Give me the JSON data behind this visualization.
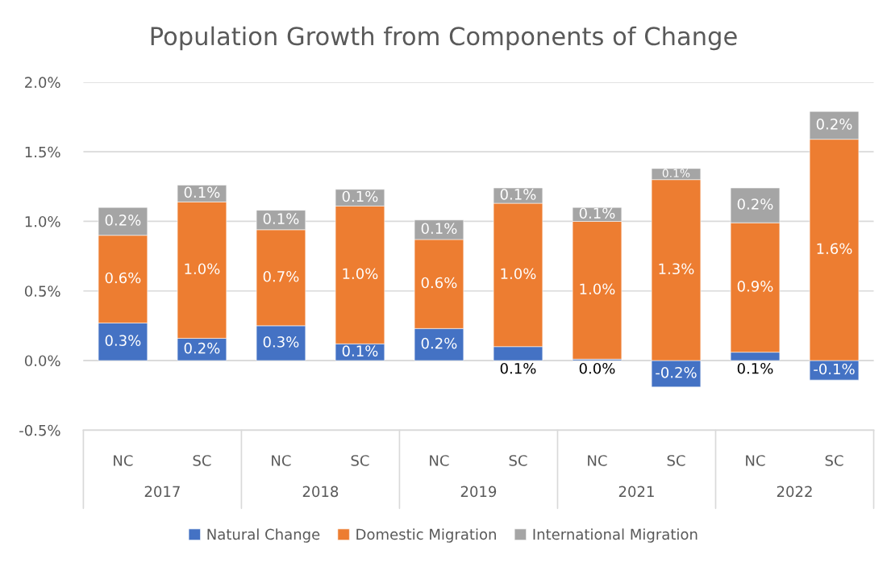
{
  "chart_data": {
    "type": "bar",
    "title": "Population Growth from Components of Change",
    "categories": [
      "NC",
      "SC",
      "NC",
      "SC",
      "NC",
      "SC",
      "NC",
      "SC",
      "NC",
      "SC"
    ],
    "stacked": true,
    "series": [
      {
        "name": "Natural Change",
        "color": "#4472c4",
        "values": [
          0.27,
          0.16,
          0.25,
          0.12,
          0.23,
          0.1,
          0.01,
          -0.19,
          0.06,
          -0.14
        ],
        "value_labels": [
          "0.3%",
          "0.2%",
          "0.3%",
          "0.1%",
          "0.2%",
          "0.1%",
          "0.0%",
          "-0.2%",
          "0.1%",
          "-0.1%"
        ]
      },
      {
        "name": "Domestic Migration",
        "color": "#ed7d31",
        "values": [
          0.63,
          0.98,
          0.69,
          0.99,
          0.64,
          1.03,
          0.99,
          1.3,
          0.93,
          1.59
        ],
        "value_labels": [
          "0.6%",
          "1.0%",
          "0.7%",
          "1.0%",
          "0.6%",
          "1.0%",
          "1.0%",
          "1.3%",
          "0.9%",
          "1.6%"
        ]
      },
      {
        "name": "International Migration",
        "color": "#a5a5a5",
        "values": [
          0.2,
          0.12,
          0.14,
          0.12,
          0.14,
          0.11,
          0.1,
          0.08,
          0.25,
          0.2
        ],
        "value_labels": [
          "0.2%",
          "0.1%",
          "0.1%",
          "0.1%",
          "0.1%",
          "0.1%",
          "0.1%",
          "0.1%",
          "0.2%",
          "0.2%"
        ]
      }
    ],
    "annotations": [
      "2017",
      "2018",
      "2019",
      "2021",
      "2022"
    ],
    "ylim": [
      -0.5,
      2.0
    ],
    "yticks": [
      {
        "value": -0.5,
        "label": "-0.5%"
      },
      {
        "value": 0,
        "label": "0.0%"
      },
      {
        "value": 0.5,
        "label": "0.5%"
      },
      {
        "value": 1.0,
        "label": "1.0%"
      },
      {
        "value": 1.5,
        "label": "1.5%"
      },
      {
        "value": 2.0,
        "label": "2.0%"
      }
    ],
    "grid": "y",
    "legend": "bottom"
  }
}
